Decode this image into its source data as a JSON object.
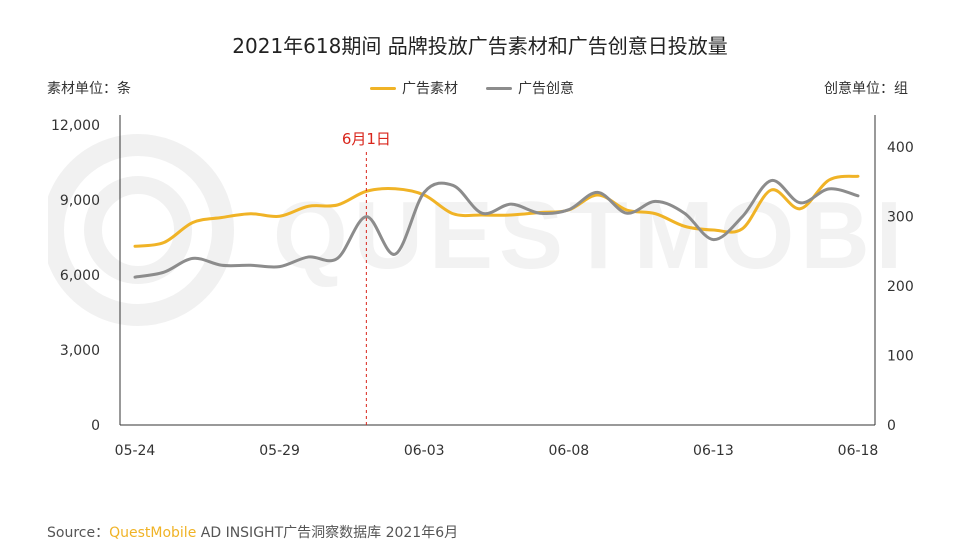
{
  "title": "2021年618期间 品牌投放广告素材和广告创意日投放量",
  "left_unit": "素材单位：条",
  "right_unit": "创意单位：组",
  "legend": [
    {
      "label": "广告素材",
      "color": "#f0b326"
    },
    {
      "label": "广告创意",
      "color": "#8c8c8c"
    }
  ],
  "annotation": {
    "label": "6月1日",
    "color": "#d9261c"
  },
  "source": {
    "prefix": "Source：",
    "brand": "QuestMobile",
    "rest": " AD INSIGHT广告洞察数据库 2021年6月"
  },
  "watermark": "QUESTMOBILE",
  "chart_data": {
    "type": "line",
    "x": [
      "05-24",
      "05-25",
      "05-26",
      "05-27",
      "05-28",
      "05-29",
      "05-30",
      "05-31",
      "06-01",
      "06-02",
      "06-03",
      "06-04",
      "06-05",
      "06-06",
      "06-07",
      "06-08",
      "06-09",
      "06-10",
      "06-11",
      "06-12",
      "06-13",
      "06-14",
      "06-15",
      "06-16",
      "06-17",
      "06-18"
    ],
    "x_ticks": [
      "05-24",
      "05-29",
      "06-03",
      "06-08",
      "06-13",
      "06-18"
    ],
    "y_left": {
      "ticks": [
        "0",
        "3,000",
        "6,000",
        "9,000",
        "12,000"
      ],
      "min": 0,
      "max": 12000
    },
    "y_right": {
      "ticks": [
        "0",
        "100",
        "200",
        "300",
        "400"
      ],
      "min": 0,
      "max": 432
    },
    "annotation_x": "06-01",
    "series": [
      {
        "name": "广告素材",
        "axis": "left",
        "color": "#f0b326",
        "values": [
          7150,
          7300,
          8100,
          8300,
          8450,
          8350,
          8750,
          8800,
          9350,
          9450,
          9200,
          8450,
          8400,
          8400,
          8500,
          8600,
          9200,
          8600,
          8450,
          7950,
          7800,
          7850,
          9400,
          8650,
          9800,
          9950
        ]
      },
      {
        "name": "广告创意",
        "axis": "right",
        "color": "#8c8c8c",
        "values": [
          213,
          220,
          240,
          230,
          230,
          228,
          242,
          240,
          300,
          246,
          335,
          345,
          305,
          318,
          305,
          310,
          335,
          305,
          322,
          305,
          267,
          300,
          352,
          320,
          340,
          330
        ]
      }
    ]
  }
}
